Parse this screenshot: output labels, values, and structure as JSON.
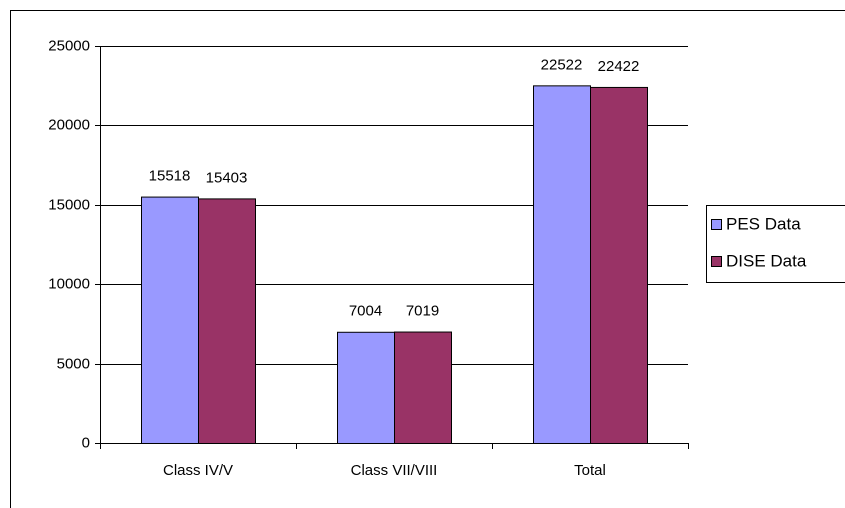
{
  "chart_data": {
    "type": "bar",
    "categories": [
      "Class IV/V",
      "Class VII/VIII",
      "Total"
    ],
    "series": [
      {
        "name": "PES Data",
        "color": "#9999ff",
        "values": [
          15518,
          7004,
          22522
        ]
      },
      {
        "name": "DISE Data",
        "color": "#993366",
        "values": [
          15403,
          7019,
          22422
        ]
      }
    ],
    "ylim": [
      0,
      25000
    ],
    "yticks": [
      0,
      5000,
      10000,
      15000,
      20000,
      25000
    ],
    "grid": true,
    "legend": "right"
  }
}
